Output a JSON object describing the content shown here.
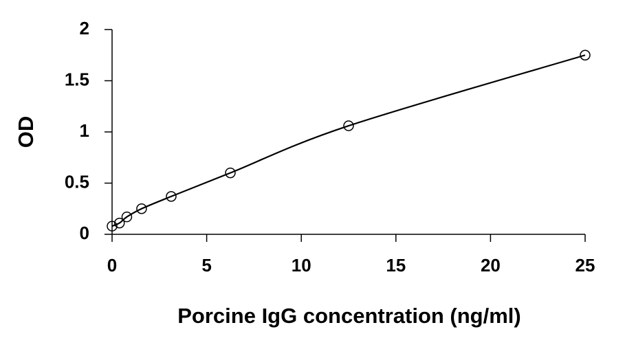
{
  "chart_data": {
    "type": "scatter",
    "xlabel": "Porcine IgG concentration (ng/ml)",
    "ylabel": "OD",
    "x": [
      0,
      0.39,
      0.78,
      1.56,
      3.125,
      6.25,
      12.5,
      25
    ],
    "series": [
      {
        "color": "#000000",
        "values": [
          0.08,
          0.11,
          0.17,
          0.25,
          0.37,
          0.6,
          1.06,
          1.75
        ]
      }
    ],
    "xlim": [
      0,
      25
    ],
    "ylim": [
      0,
      2
    ],
    "xticks": [
      0,
      5,
      10,
      15,
      20,
      25
    ],
    "yticks": [
      0,
      0.5,
      1,
      1.5,
      2
    ]
  }
}
